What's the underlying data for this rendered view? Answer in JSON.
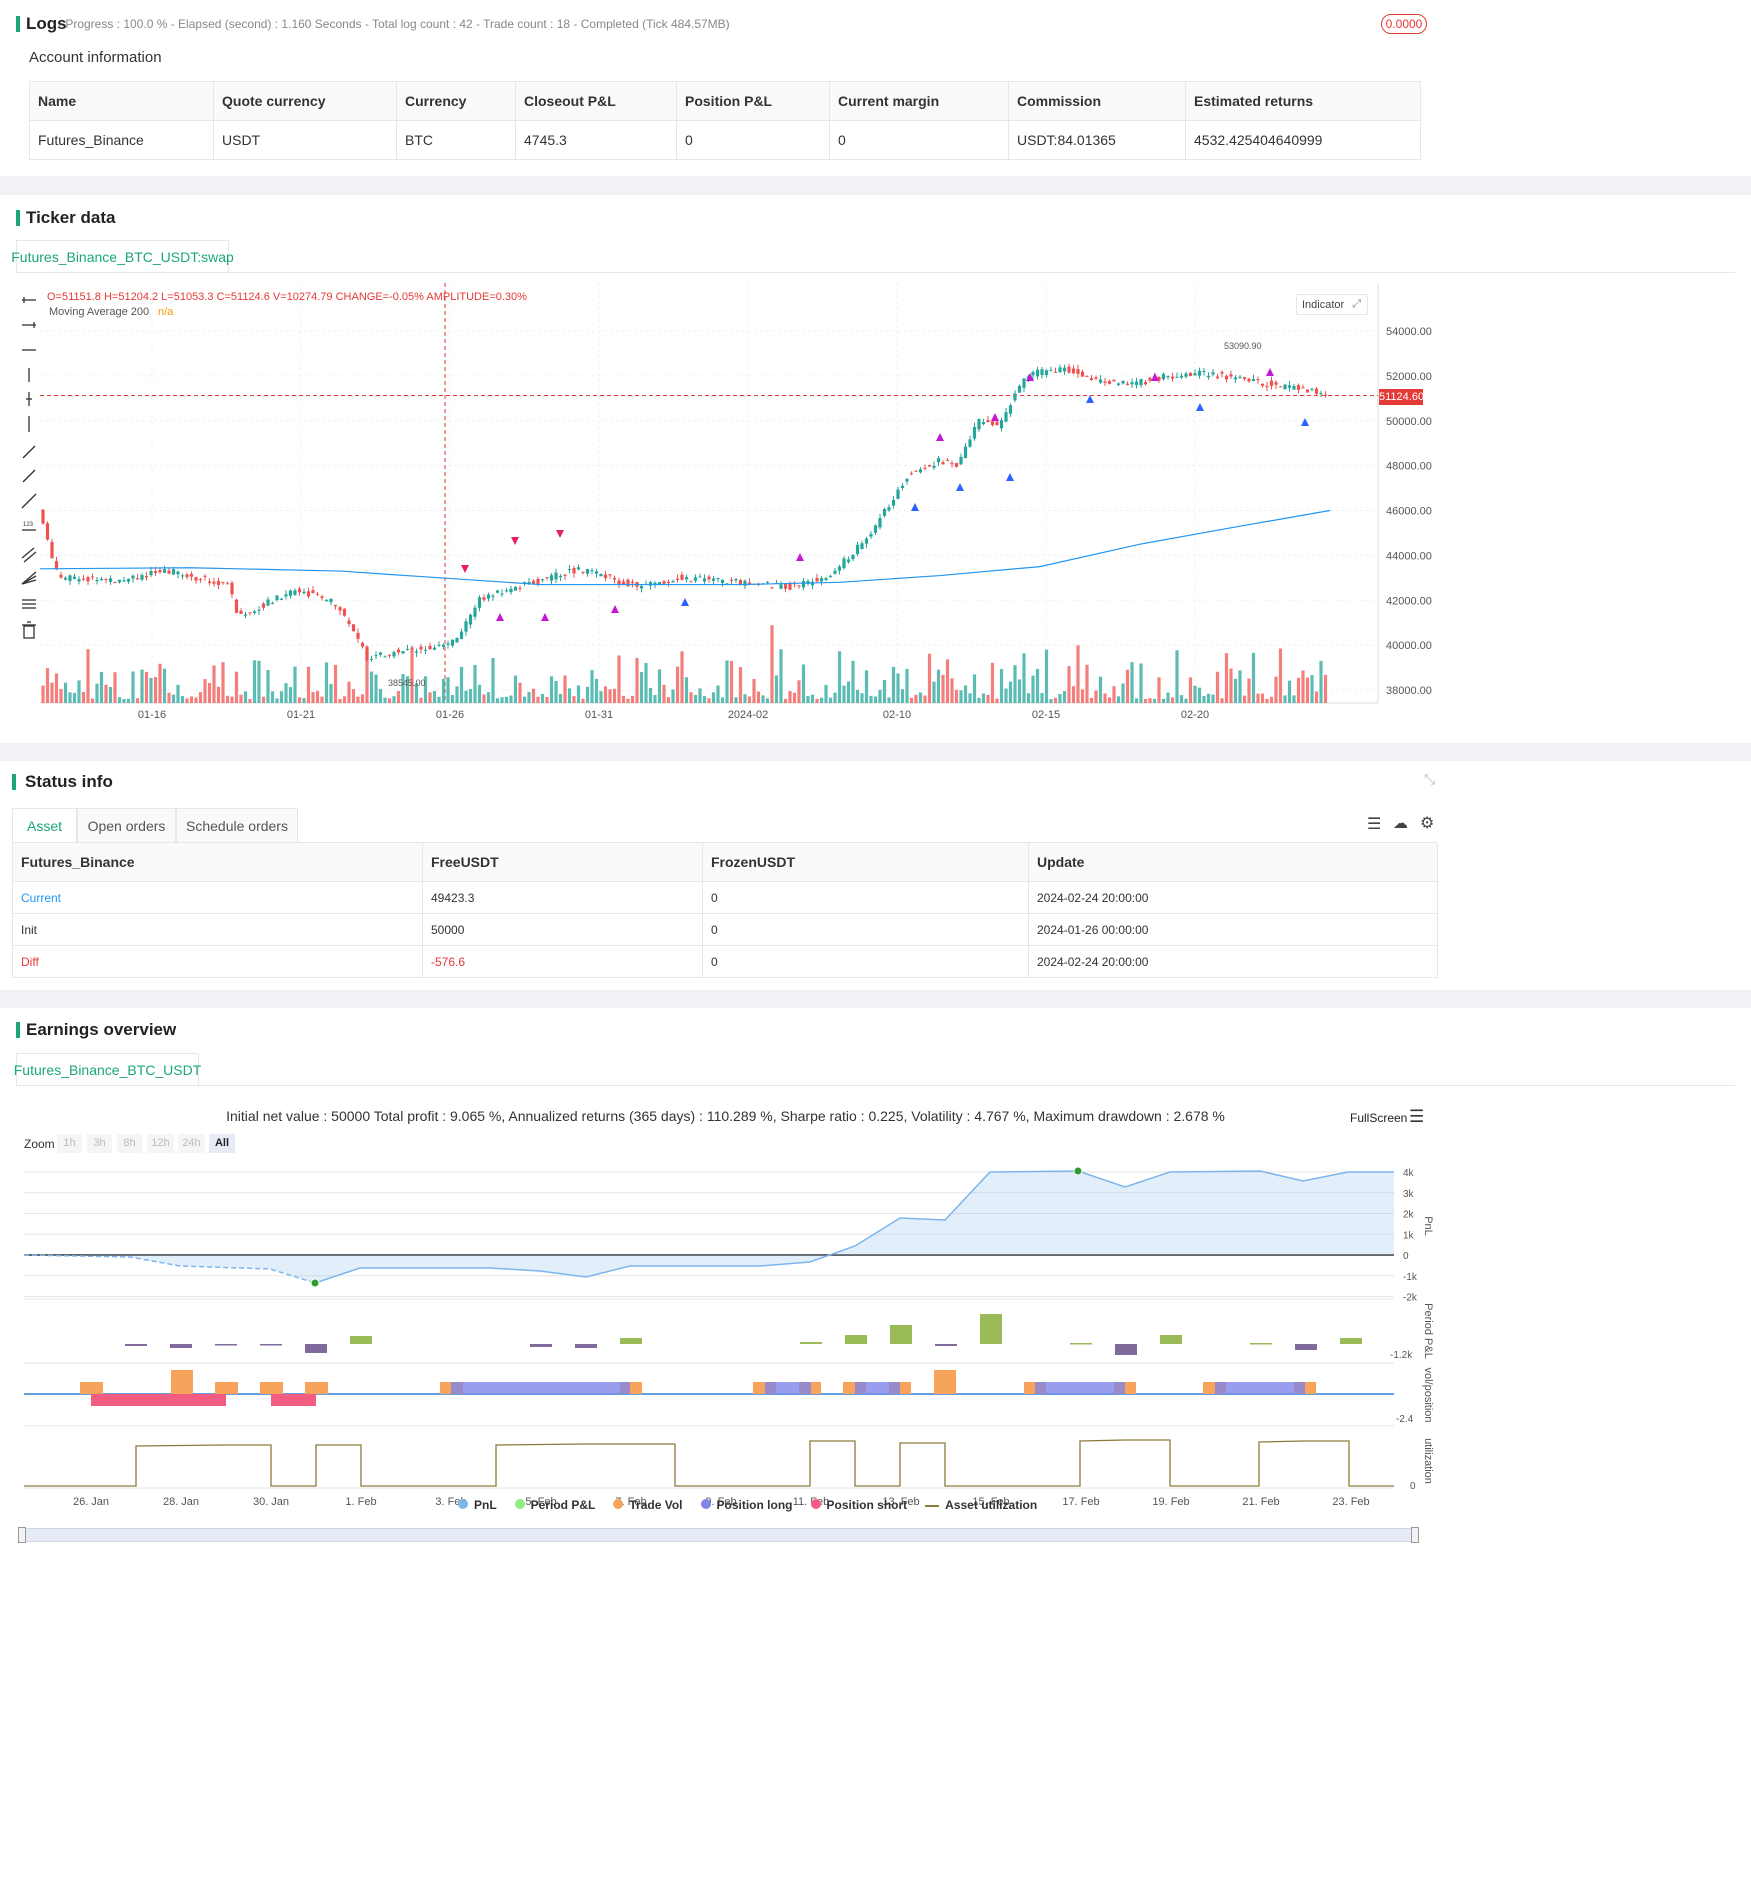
{
  "logs": {
    "title": "Logs",
    "progress_text": "- Progress : 100.0 % - Elapsed (second) : 1.160  Seconds - Total log count : 42 - Trade count : 18 - Completed (Tick 484.57MB)",
    "badge": "0.0000",
    "account_title": "Account information",
    "columns": [
      "Name",
      "Quote currency",
      "Currency",
      "Closeout P&L",
      "Position P&L",
      "Current margin",
      "Commission",
      "Estimated returns"
    ],
    "row": [
      "Futures_Binance",
      "USDT",
      "BTC",
      "4745.3",
      "0",
      "0",
      "USDT:84.01365",
      "4532.425404640999"
    ]
  },
  "ticker": {
    "title": "Ticker data",
    "tab": "Futures_Binance_BTC_USDT:swap",
    "ohlc_text": "O=51151.8 H=51204.2 L=51053.3 C=51124.6 V=10274.79 CHANGE=-0.05% AMPLITUDE=0.30%",
    "ma_label": "Moving Average 200",
    "ma_value": "n/a",
    "indicator_btn": "Indicator",
    "price_tag": "51124.60",
    "high_marker": "53090.90",
    "low_marker": "38545.00",
    "y_ticks": [
      "54000.00",
      "52000.00",
      "50000.00",
      "48000.00",
      "46000.00",
      "44000.00",
      "42000.00",
      "40000.00",
      "38000.00"
    ],
    "x_ticks": [
      "01-16",
      "01-21",
      "01-26",
      "01-31",
      "2024-02",
      "02-10",
      "02-15",
      "02-20"
    ],
    "colors": {
      "up": "#26a69a",
      "down": "#ef5350",
      "ma": "#2196f3",
      "long": "#2962ff",
      "short": "#e91e63",
      "close": "#c418d6"
    }
  },
  "status": {
    "title": "Status info",
    "tabs": [
      "Asset",
      "Open orders",
      "Schedule orders"
    ],
    "columns": [
      "Futures_Binance",
      "FreeUSDT",
      "FrozenUSDT",
      "Update"
    ],
    "rows": [
      [
        "Current",
        "49423.3",
        "0",
        "2024-02-24 20:00:00"
      ],
      [
        "Init",
        "50000",
        "0",
        "2024-01-26 00:00:00"
      ],
      [
        "Diff",
        "-576.6",
        "0",
        "2024-02-24 20:00:00"
      ]
    ]
  },
  "earnings": {
    "title": "Earnings overview",
    "tab": "Futures_Binance_BTC_USDT",
    "summary": "Initial net value : 50000 Total profit : 9.065 %, Annualized returns (365 days) : 110.289 %, Sharpe ratio : 0.225, Volatility : 4.767 %, Maximum drawdown : 2.678 %",
    "fullscreen": "FullScreen",
    "zoom_label": "Zoom",
    "zoom_options": [
      "1h",
      "3h",
      "8h",
      "12h",
      "24h",
      "All"
    ],
    "pnl_ticks": [
      "4k",
      "3k",
      "2k",
      "1k",
      "0",
      "-1k",
      "-2k"
    ],
    "period_tick": "-1.2k",
    "vol_tick": "-2.4",
    "util_tick": "0",
    "axis_labels": [
      "PnL",
      "Period P&L",
      "vol/position",
      "utilization"
    ],
    "x_ticks": [
      "26. Jan",
      "28. Jan",
      "30. Jan",
      "1. Feb",
      "3. Feb",
      "5. Feb",
      "7. Feb",
      "9. Feb",
      "11. Feb",
      "13. Feb",
      "15. Feb",
      "17. Feb",
      "19. Feb",
      "21. Feb",
      "23. Feb"
    ],
    "legend": [
      {
        "label": "PnL",
        "color": "#7cb5ec"
      },
      {
        "label": "Period P&L",
        "color": "#90ed7d"
      },
      {
        "label": "Trade Vol",
        "color": "#f7a35c"
      },
      {
        "label": "Position long",
        "color": "#8085e9"
      },
      {
        "label": "Position short",
        "color": "#f15c80"
      },
      {
        "label": "Asset utilization",
        "color": "#8d7a3a"
      }
    ]
  }
}
